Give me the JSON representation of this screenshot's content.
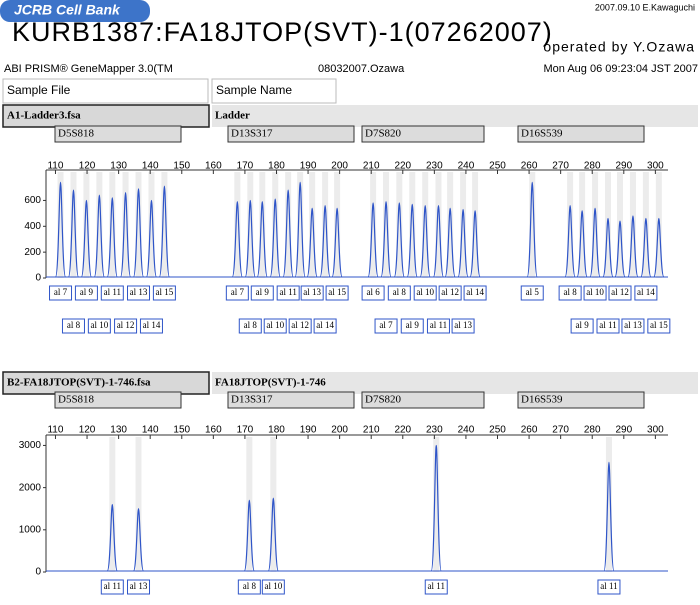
{
  "stamp": "2007.09.10 E.Kawaguchi",
  "logo": "JCRB Cell Bank",
  "title": "KURB1387:FA18JTOP(SVT)-1(07262007)",
  "operator": "operated by Y.Ozawa",
  "software": "ABI PRISM® GeneMapper 3.0(TM",
  "run": "08032007.Ozawa",
  "date": "Mon Aug 06 09:23:04 JST 2007",
  "sample_file_header": "Sample File",
  "sample_name_header": "Sample Name",
  "chart_data": [
    {
      "type": "peaks",
      "sample_file": "A1-Ladder3.fsa",
      "sample_name": "Ladder",
      "markers": [
        "D5S818",
        "D13S317",
        "D7S820",
        "D16S539"
      ],
      "xlim": [
        107,
        304
      ],
      "xticks": [
        110,
        120,
        130,
        140,
        150,
        160,
        170,
        180,
        190,
        200,
        210,
        220,
        230,
        240,
        250,
        260,
        270,
        280,
        290,
        300
      ],
      "ylim": [
        0,
        820
      ],
      "yticks": [
        0,
        200,
        400,
        600
      ],
      "color": "#2f55c8",
      "x": [
        111.6,
        115.7,
        119.8,
        123.9,
        128,
        132.2,
        136.3,
        140.4,
        144.5,
        167.6,
        171.7,
        175.5,
        179.6,
        183.7,
        187.5,
        191.3,
        195.4,
        199.2,
        210.6,
        214.7,
        218.9,
        223,
        227.1,
        231.3,
        235,
        239.1,
        242.9,
        261,
        273,
        276.8,
        280.9,
        285,
        288.8,
        292.9,
        297,
        301.1
      ],
      "values": [
        740,
        680,
        600,
        640,
        620,
        660,
        690,
        600,
        710,
        590,
        600,
        590,
        610,
        680,
        740,
        540,
        560,
        540,
        580,
        590,
        580,
        570,
        560,
        560,
        540,
        530,
        520,
        740,
        560,
        520,
        540,
        460,
        440,
        480,
        460,
        460
      ],
      "labels": [
        "al 7",
        "al 8",
        "al 9",
        "al 10",
        "al 11",
        "al 12",
        "al 13",
        "al 14",
        "al 15",
        "al 7",
        "al 8",
        "al 9",
        "al 10",
        "al 11",
        "al 12",
        "al 13",
        "al 14",
        "al 15",
        "al 6",
        "al 7",
        "al 8",
        "al 9",
        "al 10",
        "al 11",
        "al 12",
        "al 13",
        "al 14",
        "al 5",
        "al 8",
        "al 9",
        "al 10",
        "al 11",
        "al 12",
        "al 13",
        "al 14",
        "al 15"
      ]
    },
    {
      "type": "peaks",
      "sample_file": "B2-FA18JTOP(SVT)-1-746.fsa",
      "sample_name": "FA18JTOP(SVT)-1-746",
      "markers": [
        "D5S818",
        "D13S317",
        "D7S820",
        "D16S539"
      ],
      "xlim": [
        107,
        304
      ],
      "xticks": [
        110,
        120,
        130,
        140,
        150,
        160,
        170,
        180,
        190,
        200,
        210,
        220,
        230,
        240,
        250,
        260,
        270,
        280,
        290,
        300
      ],
      "ylim": [
        0,
        3200
      ],
      "yticks": [
        0,
        1000,
        2000,
        3000
      ],
      "color": "#2f55c8",
      "x": [
        128,
        136.3,
        171.4,
        179,
        230.6,
        285.3
      ],
      "values": [
        1600,
        1500,
        1700,
        1750,
        3000,
        2600
      ],
      "labels": [
        "al 11",
        "al 13",
        "al 8",
        "al 10",
        "al 11",
        "al 11"
      ]
    }
  ]
}
